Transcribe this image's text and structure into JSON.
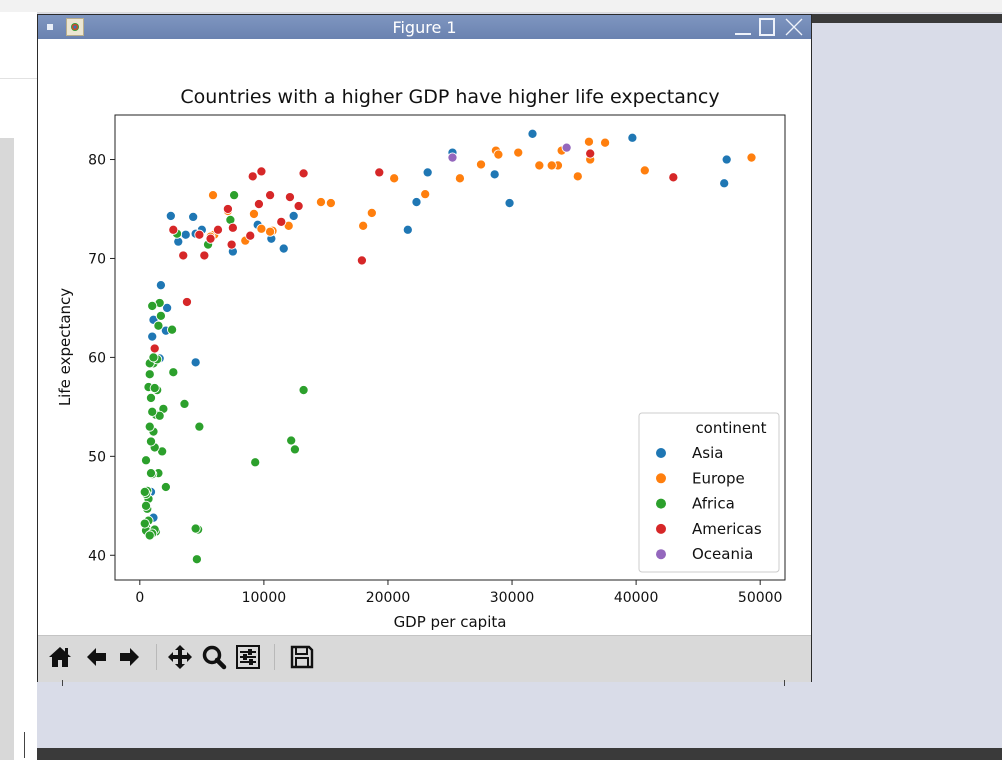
{
  "window": {
    "title": "Figure 1"
  },
  "toolbar": {
    "buttons": [
      {
        "name": "home-icon",
        "tooltip": ""
      },
      {
        "name": "back-arrow-icon",
        "tooltip": ""
      },
      {
        "name": "forward-arrow-icon",
        "tooltip": ""
      },
      {
        "name": "pan-icon",
        "tooltip": ""
      },
      {
        "name": "zoom-icon",
        "tooltip": ""
      },
      {
        "name": "subplots-config-icon",
        "tooltip": ""
      },
      {
        "name": "save-icon",
        "tooltip": ""
      }
    ]
  },
  "chart_data": {
    "type": "scatter",
    "title": "Countries with a higher GDP have higher life expectancy",
    "xlabel": "GDP per capita",
    "ylabel": "Life expectancy",
    "xlim": [
      -2000,
      52000
    ],
    "ylim": [
      37.5,
      84.5
    ],
    "xticks": [
      0,
      10000,
      20000,
      30000,
      40000,
      50000
    ],
    "yticks": [
      40,
      50,
      60,
      70,
      80
    ],
    "grid": false,
    "legend": {
      "title": "continent",
      "placement": "lower right"
    },
    "colors": {
      "Asia": "#1f77b4",
      "Europe": "#ff7f0e",
      "Africa": "#2ca02c",
      "Americas": "#d62728",
      "Oceania": "#9467bd"
    },
    "series": [
      {
        "name": "Asia",
        "x": [
          31650,
          47300,
          47100,
          39700,
          25200,
          28600,
          29800,
          23200,
          22300,
          21600,
          12400,
          10600,
          11600,
          9500,
          7500,
          5000,
          4500,
          4300,
          3700,
          3100,
          2500,
          2200,
          2100,
          1700,
          1600,
          1100,
          1000,
          1000,
          4500,
          1100,
          900
        ],
        "y": [
          82.6,
          80.0,
          77.6,
          82.2,
          80.7,
          78.5,
          75.6,
          78.7,
          75.7,
          72.9,
          74.3,
          72.0,
          71.0,
          73.4,
          70.7,
          72.9,
          72.5,
          74.2,
          72.4,
          71.7,
          74.3,
          65.0,
          62.7,
          67.3,
          59.9,
          63.8,
          62.1,
          59.4,
          59.5,
          43.8,
          46.4
        ]
      },
      {
        "name": "Europe",
        "x": [
          49300,
          40700,
          37500,
          36200,
          36300,
          35300,
          34000,
          33700,
          33200,
          32200,
          30500,
          28700,
          28900,
          27500,
          25800,
          23000,
          20500,
          18700,
          18000,
          15400,
          14600,
          12000,
          10700,
          10500,
          9800,
          9200,
          8500,
          7100,
          6000,
          5900,
          5700
        ],
        "y": [
          80.2,
          78.9,
          81.7,
          81.8,
          80.0,
          78.3,
          80.9,
          79.4,
          79.4,
          79.4,
          80.7,
          80.9,
          80.5,
          79.5,
          78.1,
          76.5,
          78.1,
          74.6,
          73.3,
          75.6,
          75.7,
          73.3,
          72.8,
          72.7,
          73.0,
          74.5,
          71.8,
          74.8,
          72.4,
          76.4,
          72.2
        ]
      },
      {
        "name": "Africa",
        "x": [
          13200,
          12500,
          12200,
          9300,
          7600,
          7300,
          5500,
          4800,
          4700,
          4600,
          3600,
          3000,
          2700,
          2600,
          2100,
          1900,
          1800,
          1700,
          1600,
          1500,
          1500,
          1400,
          1300,
          1200,
          1100,
          1100,
          1000,
          1000,
          900,
          900,
          800,
          800,
          800,
          700,
          700,
          700,
          600,
          600,
          500,
          500,
          500,
          500,
          500,
          400,
          400,
          1300,
          1200,
          1000,
          900,
          800,
          1600,
          1000,
          1200,
          1400,
          4500,
          1100
        ],
        "y": [
          56.7,
          50.7,
          51.6,
          49.4,
          76.4,
          73.9,
          71.4,
          53.0,
          42.6,
          39.6,
          55.3,
          72.5,
          58.5,
          62.8,
          46.9,
          54.8,
          50.5,
          64.2,
          65.5,
          63.2,
          48.3,
          56.7,
          54.2,
          50.9,
          52.5,
          59.4,
          65.2,
          48.2,
          51.5,
          55.9,
          59.4,
          58.3,
          53.0,
          57.0,
          45.7,
          43.5,
          46.5,
          44.7,
          49.6,
          46.2,
          42.9,
          45.0,
          42.5,
          46.4,
          43.2,
          42.4,
          42.6,
          42.2,
          48.3,
          42.0,
          54.1,
          54.5,
          56.9,
          59.8,
          42.7,
          60.0
        ]
      },
      {
        "name": "Americas",
        "x": [
          43000,
          36300,
          19300,
          17900,
          13200,
          12800,
          12100,
          11400,
          10500,
          9800,
          9600,
          9100,
          8900,
          7500,
          7400,
          7100,
          6300,
          5700,
          5200,
          4800,
          3800,
          3500,
          2700,
          1200
        ],
        "y": [
          78.2,
          80.6,
          78.7,
          69.8,
          78.6,
          75.3,
          76.2,
          73.7,
          76.4,
          78.8,
          75.5,
          78.3,
          72.3,
          73.1,
          71.4,
          75.0,
          72.9,
          72.0,
          70.3,
          72.4,
          65.6,
          70.3,
          72.9,
          60.9
        ]
      },
      {
        "name": "Oceania",
        "x": [
          34400,
          25200
        ],
        "y": [
          81.2,
          80.2
        ]
      }
    ]
  }
}
